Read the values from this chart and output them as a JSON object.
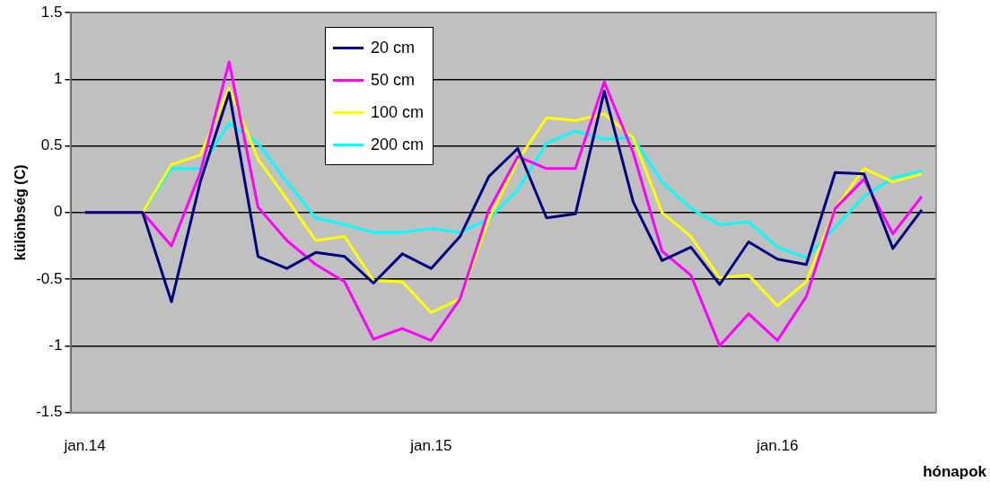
{
  "chart_data": {
    "type": "line",
    "xlabel": "hónapok",
    "ylabel": "különbség (C)",
    "categories": [
      "jan.14",
      null,
      null,
      null,
      null,
      null,
      null,
      null,
      null,
      null,
      null,
      null,
      "jan.15",
      null,
      null,
      null,
      null,
      null,
      null,
      null,
      null,
      null,
      null,
      null,
      "jan.16",
      null,
      null,
      null,
      null,
      null
    ],
    "series": [
      {
        "name": "20 cm",
        "color": "#000080",
        "values": [
          0,
          0,
          0,
          -0.67,
          0.23,
          0.9,
          -0.33,
          -0.42,
          -0.3,
          -0.33,
          -0.53,
          -0.31,
          -0.42,
          -0.18,
          0.27,
          0.48,
          -0.04,
          -0.01,
          0.91,
          0.08,
          -0.36,
          -0.26,
          -0.54,
          -0.22,
          -0.35,
          -0.39,
          0.3,
          0.29,
          -0.27,
          0.02
        ]
      },
      {
        "name": "50 cm",
        "color": "#ff00ff",
        "values": [
          0,
          0,
          0,
          -0.25,
          0.3,
          1.13,
          0.04,
          -0.21,
          -0.39,
          -0.52,
          -0.95,
          -0.87,
          -0.96,
          -0.65,
          0.02,
          0.42,
          0.33,
          0.33,
          0.98,
          0.45,
          -0.29,
          -0.47,
          -1.0,
          -0.76,
          -0.96,
          -0.63,
          0.03,
          0.25,
          -0.16,
          0.12
        ]
      },
      {
        "name": "100 cm",
        "color": "#ffff00",
        "values": [
          0,
          0,
          0,
          0.36,
          0.43,
          0.93,
          0.4,
          0.1,
          -0.21,
          -0.18,
          -0.51,
          -0.52,
          -0.75,
          -0.65,
          -0.05,
          0.39,
          0.71,
          0.69,
          0.74,
          0.56,
          0,
          -0.18,
          -0.49,
          -0.47,
          -0.7,
          -0.52,
          0.03,
          0.33,
          0.23,
          0.29
        ]
      },
      {
        "name": "200 cm",
        "color": "#00ffff",
        "values": [
          0,
          0,
          0,
          0.33,
          0.33,
          0.67,
          0.52,
          0.23,
          -0.04,
          -0.09,
          -0.15,
          -0.15,
          -0.12,
          -0.15,
          -0.05,
          0.17,
          0.52,
          0.61,
          0.55,
          0.56,
          0.23,
          0.03,
          -0.09,
          -0.07,
          -0.26,
          -0.34,
          -0.11,
          0.12,
          0.26,
          0.31
        ]
      }
    ],
    "ylim": [
      -1.5,
      1.5
    ],
    "yticks": [
      -1.5,
      -1,
      -0.5,
      0,
      0.5,
      1,
      1.5
    ],
    "grid": "y",
    "legend": "top",
    "marker": "none",
    "line_style": "solid"
  }
}
